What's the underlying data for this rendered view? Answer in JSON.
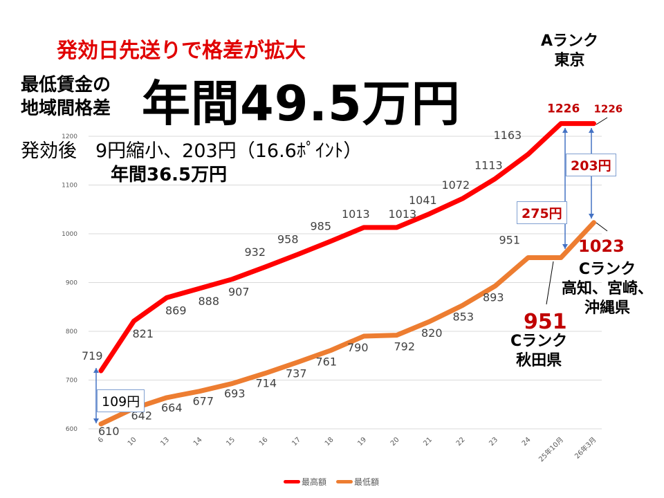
{
  "chart_data": {
    "type": "line",
    "title": "発効日先送りで格差が拡大",
    "categories": [
      "6",
      "10",
      "13",
      "14",
      "15",
      "16",
      "17",
      "18",
      "19",
      "20",
      "21",
      "22",
      "23",
      "24",
      "25年10月",
      "26年3月"
    ],
    "series": [
      {
        "name": "最高額",
        "color": "#ff0000",
        "values": [
          719,
          821,
          869,
          888,
          907,
          932,
          958,
          985,
          1013,
          1013,
          1041,
          1072,
          1113,
          1163,
          1226,
          1226
        ]
      },
      {
        "name": "最低額",
        "color": "#ed7d31",
        "values": [
          610,
          642,
          664,
          677,
          693,
          714,
          737,
          761,
          790,
          792,
          820,
          853,
          893,
          951,
          951,
          1023
        ]
      }
    ],
    "ylim": [
      600,
      1200
    ],
    "yticks": [
      "600",
      "700",
      "800",
      "900",
      "1000",
      "1100",
      "1200"
    ],
    "grid": true,
    "legend": "bottom-center"
  },
  "annotations": {
    "headline": "発効日先送りで格差が拡大",
    "gap_label_line1": "最低賃金の",
    "gap_label_line2": "地域間格差",
    "gap_value": "年間49.5万円",
    "after_line1": "発効後　9円縮小、203円（16.6ﾎﾟｲﾝﾄ）",
    "after_line2": "年間36.5万円",
    "rank_a_line1": "Aランク",
    "rank_a_line2": "東京",
    "rank_c1_line1": "Cランク",
    "rank_c1_line2": "高知、宮崎、",
    "rank_c1_line3": "沖縄県",
    "rank_c2_value": "951",
    "rank_c2_line1": "Cランク",
    "rank_c2_line2": "秋田県",
    "diff_start": "109円",
    "diff_mid": "275円",
    "diff_end": "203円"
  }
}
